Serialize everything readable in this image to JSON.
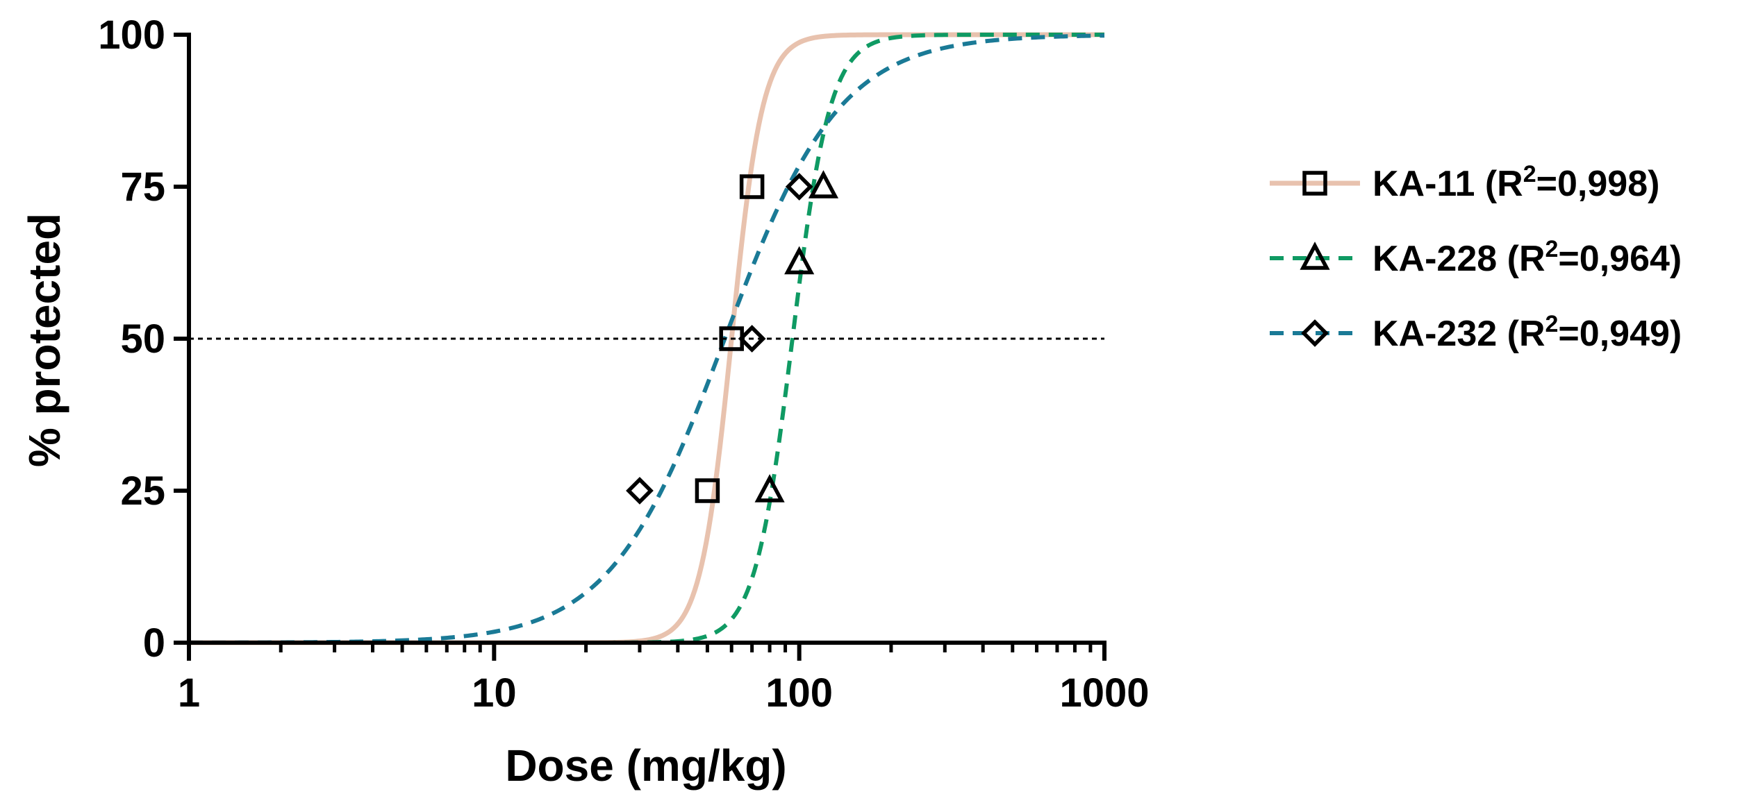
{
  "chart_data": {
    "type": "line",
    "title": "",
    "xlabel": "Dose (mg/kg)",
    "ylabel": "% protected",
    "xscale": "log",
    "xlim": [
      1,
      1000
    ],
    "ylim": [
      0,
      100
    ],
    "xticks": [
      1,
      10,
      100,
      1000
    ],
    "xtick_labels": [
      "1",
      "10",
      "100",
      "1000"
    ],
    "yticks": [
      0,
      25,
      50,
      75,
      100
    ],
    "ytick_labels": [
      "0",
      "25",
      "50",
      "75",
      "100"
    ],
    "reference_line": {
      "y": 50,
      "style": "dotted",
      "color": "#000000"
    },
    "legend_position": "right",
    "series": [
      {
        "name": "KA-11",
        "legend_prefix": "KA-11 (R",
        "legend_sup": "2",
        "legend_suffix": "=0,998)",
        "color": "#e8c2ae",
        "line_style": "solid",
        "marker": "square",
        "fit": {
          "ed50": 60,
          "hill": 8.5
        },
        "points": [
          {
            "x": 50,
            "y": 25
          },
          {
            "x": 60,
            "y": 50
          },
          {
            "x": 70,
            "y": 75
          }
        ]
      },
      {
        "name": "KA-228",
        "legend_prefix": "KA-228 (R",
        "legend_sup": "2",
        "legend_suffix": "=0,964)",
        "color": "#0f9a63",
        "line_style": "dashed",
        "marker": "triangle",
        "fit": {
          "ed50": 95,
          "hill": 7
        },
        "points": [
          {
            "x": 80,
            "y": 25
          },
          {
            "x": 100,
            "y": 62.5
          },
          {
            "x": 120,
            "y": 75
          }
        ]
      },
      {
        "name": "KA-232",
        "legend_prefix": "KA-232 (R",
        "legend_sup": "2",
        "legend_suffix": "=0,949)",
        "color": "#1a7a96",
        "line_style": "dashed",
        "marker": "diamond",
        "fit": {
          "ed50": 57,
          "hill": 2.3
        },
        "points": [
          {
            "x": 30,
            "y": 25
          },
          {
            "x": 70,
            "y": 50
          },
          {
            "x": 100,
            "y": 75
          }
        ]
      }
    ]
  }
}
